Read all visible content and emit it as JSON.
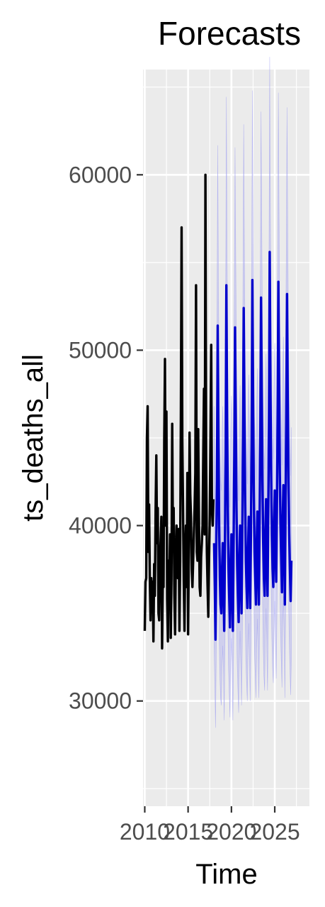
{
  "chart_data": {
    "type": "line",
    "title": "Forecasts",
    "xlabel": "Time",
    "ylabel": "ts_deaths_all",
    "xlim": [
      2009.8,
      2029.0
    ],
    "ylim": [
      24000,
      66000
    ],
    "x_ticks": [
      2010,
      2015,
      2020,
      2025
    ],
    "x_tick_labels": [
      "2010",
      "2015",
      "2020",
      "2025"
    ],
    "y_ticks": [
      30000,
      40000,
      50000,
      60000
    ],
    "y_tick_labels": [
      "30000",
      "40000",
      "50000",
      "60000"
    ],
    "grid": true,
    "colors": {
      "panel": "#ebebeb",
      "grid": "#ffffff",
      "history": "#000000",
      "forecast": "#0000cc",
      "interval": "#9a9af2"
    },
    "series": [
      {
        "role": "history",
        "start": [
          2010,
          1
        ],
        "frequency": 12,
        "values": [
          34000,
          36800,
          37000,
          45000,
          46800,
          38500,
          41200,
          37000,
          34600,
          37000,
          36000,
          36800,
          33400,
          37800,
          36000,
          40800,
          44000,
          39000,
          41000,
          35000,
          34600,
          38000,
          39200,
          40500,
          33000,
          37000,
          36500,
          45000,
          49500,
          40000,
          46500,
          35800,
          33400,
          38000,
          36500,
          39500,
          33600,
          37000,
          45800,
          39000,
          41000,
          36000,
          33800,
          38000,
          40000,
          38500,
          37000,
          39800,
          34000,
          38000,
          46300,
          57000,
          44800,
          41000,
          36800,
          34000,
          38500,
          40000,
          36500,
          43000,
          33800,
          38500,
          45300,
          41800,
          40500,
          37500,
          36500,
          38000,
          39500,
          41000,
          43000,
          53700,
          38500,
          38000,
          45500,
          40500,
          36500,
          36000,
          38200,
          39000,
          40000,
          44000,
          47800,
          39500,
          60000,
          44000,
          38500,
          36500,
          34800,
          38000,
          40500,
          45000,
          50300,
          41000,
          40000,
          41500
        ]
      },
      {
        "role": "forecast",
        "start": [
          2018,
          1
        ],
        "frequency": 12,
        "values": [
          39000,
          36500,
          33500,
          38500,
          42500,
          51400,
          45000,
          40000,
          37000,
          35500,
          35000,
          37500,
          39000,
          37000,
          34000,
          38600,
          44000,
          53700,
          46000,
          40800,
          37500,
          35800,
          34200,
          37800,
          39500,
          37000,
          34000,
          38800,
          44000,
          51300,
          46000,
          41000,
          37800,
          36000,
          34500,
          38000,
          40000,
          37500,
          35000,
          39000,
          44500,
          52400,
          46500,
          41500,
          38000,
          36500,
          35300,
          38500,
          40500,
          38000,
          35300,
          39500,
          44800,
          54000,
          47000,
          42000,
          38500,
          37000,
          35500,
          39000,
          40800,
          38000,
          35500,
          40000,
          45000,
          53000,
          47500,
          42500,
          39000,
          37000,
          36000,
          39500,
          41500,
          38500,
          36000,
          40500,
          45500,
          55600,
          48000,
          43000,
          39500,
          37500,
          36500,
          40000,
          42000,
          39000,
          36800,
          41000,
          46000,
          53900,
          48000,
          43000,
          40000,
          38000,
          36200,
          40300,
          42300,
          39500,
          35500,
          41200,
          46500,
          53200,
          47000,
          42500,
          39500,
          37500,
          35700,
          38000
        ]
      }
    ],
    "interval": {
      "role": "80% band",
      "spread_low": 0.85,
      "spread_high": 1.2
    }
  }
}
